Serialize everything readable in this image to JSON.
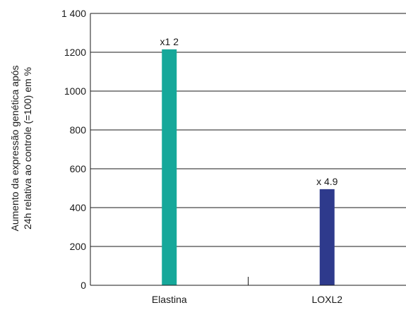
{
  "chart_data": {
    "type": "bar",
    "title": "",
    "ylabel_lines": [
      "Aumento da expressão genética após",
      "24h relativa ao controle (=100) em %"
    ],
    "xlabel": "",
    "categories": [
      "Elastina",
      "LOXL2"
    ],
    "values": [
      1215,
      495
    ],
    "data_labels": [
      "x1 2",
      "x 4.9"
    ],
    "colors": [
      "#16a89a",
      "#2e3a8c"
    ],
    "ylim": [
      0,
      1400
    ],
    "yticks": [
      0,
      200,
      400,
      600,
      800,
      1000,
      1200,
      1400
    ],
    "ytick_labels": [
      "0",
      "200",
      "400",
      "600",
      "800",
      "1000",
      "1200",
      "1 400"
    ],
    "grid": true,
    "legend": "none"
  }
}
